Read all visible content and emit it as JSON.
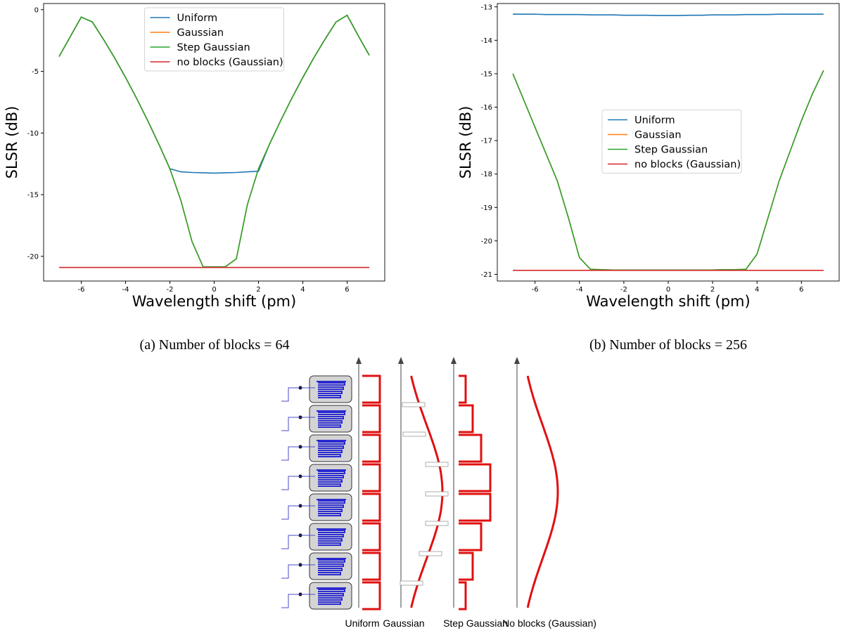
{
  "chart_data": [
    {
      "type": "line",
      "caption": "(a) Number of blocks = 64",
      "xlabel": "Wavelength shift (pm)",
      "ylabel": "SLSR (dB)",
      "x": [
        -7,
        -6.5,
        -6,
        -5.5,
        -5,
        -4.5,
        -4,
        -3.5,
        -3,
        -2.5,
        -2,
        -1.5,
        -1,
        -0.5,
        0,
        0.5,
        1,
        1.5,
        2,
        2.5,
        3,
        3.5,
        4,
        4.5,
        5,
        5.5,
        6,
        6.5,
        7
      ],
      "xlim": [
        -7.7,
        7.7
      ],
      "xticks": [
        -6,
        -4,
        -2,
        0,
        2,
        4,
        6
      ],
      "ylim": [
        -22,
        0.5
      ],
      "yticks": [
        -20,
        -15,
        -10,
        -5,
        0
      ],
      "legend": "upper center",
      "series": [
        {
          "name": "Uniform",
          "color": "#1f77b4",
          "values": [
            -3.8,
            -2.2,
            -0.6,
            -1.0,
            -2.4,
            -3.9,
            -5.5,
            -7.2,
            -9.0,
            -10.9,
            -12.9,
            -13.15,
            -13.2,
            -13.22,
            -13.25,
            -13.22,
            -13.2,
            -13.15,
            -13.1,
            -10.9,
            -9.0,
            -7.2,
            -5.5,
            -3.9,
            -2.4,
            -1.0,
            -0.45,
            -2.1,
            -3.7
          ]
        },
        {
          "name": "Gaussian",
          "color": "#ff7f0e",
          "values": [
            -3.8,
            -2.2,
            -0.6,
            -1.0,
            -2.4,
            -3.9,
            -5.5,
            -7.2,
            -9.0,
            -10.9,
            -12.9,
            -15.5,
            -18.8,
            -20.85,
            -20.85,
            -20.85,
            -20.2,
            -15.8,
            -12.9,
            -10.9,
            -9.0,
            -7.2,
            -5.5,
            -3.9,
            -2.4,
            -1.0,
            -0.45,
            -2.1,
            -3.7
          ]
        },
        {
          "name": "Step Gaussian",
          "color": "#2ca02c",
          "values": [
            -3.8,
            -2.2,
            -0.6,
            -1.0,
            -2.4,
            -3.9,
            -5.5,
            -7.2,
            -9.0,
            -10.9,
            -12.9,
            -15.5,
            -18.8,
            -20.85,
            -20.85,
            -20.85,
            -20.2,
            -15.8,
            -12.9,
            -10.9,
            -9.0,
            -7.2,
            -5.5,
            -3.9,
            -2.4,
            -1.0,
            -0.45,
            -2.1,
            -3.7
          ]
        },
        {
          "name": "no blocks (Gaussian)",
          "color": "#d62728",
          "values": [
            -20.9,
            -20.9,
            -20.9,
            -20.9,
            -20.9,
            -20.9,
            -20.9,
            -20.9,
            -20.9,
            -20.9,
            -20.9,
            -20.9,
            -20.9,
            -20.9,
            -20.9,
            -20.9,
            -20.9,
            -20.9,
            -20.9,
            -20.9,
            -20.9,
            -20.9,
            -20.9,
            -20.9,
            -20.9,
            -20.9,
            -20.9,
            -20.9,
            -20.9
          ]
        }
      ]
    },
    {
      "type": "line",
      "caption": "(b) Number of blocks = 256",
      "xlabel": "Wavelength shift (pm)",
      "ylabel": "SLSR (dB)",
      "x": [
        -7,
        -6.5,
        -6,
        -5.5,
        -5,
        -4.5,
        -4,
        -3.5,
        -3,
        -2.5,
        -2,
        -1.5,
        -1,
        -0.5,
        0,
        0.5,
        1,
        1.5,
        2,
        2.5,
        3,
        3.5,
        4,
        4.5,
        5,
        5.5,
        6,
        6.5,
        7
      ],
      "xlim": [
        -7.7,
        7.7
      ],
      "xticks": [
        -6,
        -4,
        -2,
        0,
        2,
        4,
        6
      ],
      "ylim": [
        -21.2,
        -12.9
      ],
      "yticks": [
        -21,
        -20,
        -19,
        -18,
        -17,
        -16,
        -15,
        -14,
        -13
      ],
      "legend": "center",
      "series": [
        {
          "name": "Uniform",
          "color": "#1f77b4",
          "values": [
            -13.22,
            -13.22,
            -13.22,
            -13.23,
            -13.23,
            -13.23,
            -13.23,
            -13.24,
            -13.24,
            -13.24,
            -13.25,
            -13.25,
            -13.25,
            -13.26,
            -13.26,
            -13.26,
            -13.25,
            -13.25,
            -13.24,
            -13.24,
            -13.24,
            -13.23,
            -13.23,
            -13.23,
            -13.22,
            -13.22,
            -13.22,
            -13.22,
            -13.22
          ]
        },
        {
          "name": "Gaussian",
          "color": "#ff7f0e",
          "values": [
            -15.0,
            -15.8,
            -16.6,
            -17.4,
            -18.2,
            -19.3,
            -20.5,
            -20.85,
            -20.86,
            -20.87,
            -20.87,
            -20.87,
            -20.87,
            -20.87,
            -20.87,
            -20.87,
            -20.87,
            -20.87,
            -20.87,
            -20.86,
            -20.86,
            -20.85,
            -20.4,
            -19.3,
            -18.2,
            -17.3,
            -16.4,
            -15.6,
            -14.9
          ]
        },
        {
          "name": "Step Gaussian",
          "color": "#2ca02c",
          "values": [
            -15.0,
            -15.8,
            -16.6,
            -17.4,
            -18.2,
            -19.3,
            -20.5,
            -20.85,
            -20.86,
            -20.87,
            -20.87,
            -20.87,
            -20.87,
            -20.87,
            -20.87,
            -20.87,
            -20.87,
            -20.87,
            -20.87,
            -20.86,
            -20.86,
            -20.85,
            -20.4,
            -19.3,
            -18.2,
            -17.3,
            -16.4,
            -15.6,
            -14.9
          ]
        },
        {
          "name": "no blocks (Gaussian)",
          "color": "#d62728",
          "values": [
            -20.88,
            -20.88,
            -20.88,
            -20.88,
            -20.88,
            -20.88,
            -20.88,
            -20.88,
            -20.88,
            -20.88,
            -20.88,
            -20.88,
            -20.88,
            -20.88,
            -20.88,
            -20.88,
            -20.88,
            -20.88,
            -20.88,
            -20.88,
            -20.88,
            -20.88,
            -20.88,
            -20.88,
            -20.88,
            -20.88,
            -20.88,
            -20.88,
            -20.88
          ]
        }
      ]
    }
  ],
  "diagram": {
    "labels": [
      "Uniform",
      "Gaussian",
      "Step Gaussian",
      "No blocks (Gaussian)"
    ]
  }
}
